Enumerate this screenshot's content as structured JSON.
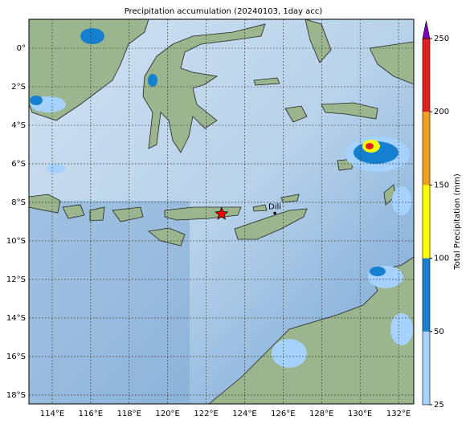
{
  "title": "Precipitation accumulation (20240103, 1day acc)",
  "map": {
    "lon_range": [
      112.79,
      132.79
    ],
    "lat_range": [
      -18.46,
      1.5
    ],
    "lon_ticks": [
      {
        "value": 114,
        "label": "114°E"
      },
      {
        "value": 116,
        "label": "116°E"
      },
      {
        "value": 118,
        "label": "118°E"
      },
      {
        "value": 120,
        "label": "120°E"
      },
      {
        "value": 122,
        "label": "122°E"
      },
      {
        "value": 124,
        "label": "124°E"
      },
      {
        "value": 126,
        "label": "126°E"
      },
      {
        "value": 128,
        "label": "128°E"
      },
      {
        "value": 130,
        "label": "130°E"
      },
      {
        "value": 132,
        "label": "132°E"
      }
    ],
    "lat_ticks": [
      {
        "value": 0,
        "label": "0°"
      },
      {
        "value": -2,
        "label": "2°S"
      },
      {
        "value": -4,
        "label": "4°S"
      },
      {
        "value": -6,
        "label": "6°S"
      },
      {
        "value": -8,
        "label": "8°S"
      },
      {
        "value": -10,
        "label": "10°S"
      },
      {
        "value": -12,
        "label": "12°S"
      },
      {
        "value": -14,
        "label": "14°S"
      },
      {
        "value": -16,
        "label": "16°S"
      },
      {
        "value": -18,
        "label": "18°S"
      }
    ],
    "cities": [
      {
        "name": "Dili",
        "lon": 125.57,
        "lat": -8.56
      }
    ],
    "epicenter": {
      "lon": 122.8,
      "lat": -8.6,
      "color": "#ff0000"
    }
  },
  "colorbar": {
    "label": "Total Precipitation (mm)",
    "ticks": [
      25,
      50,
      100,
      150,
      200,
      250
    ],
    "colors": [
      "#a6d2ff",
      "#1580d0",
      "#ffff00",
      "#f0a020",
      "#e02020"
    ],
    "extend_color": "#7b00b4"
  }
}
